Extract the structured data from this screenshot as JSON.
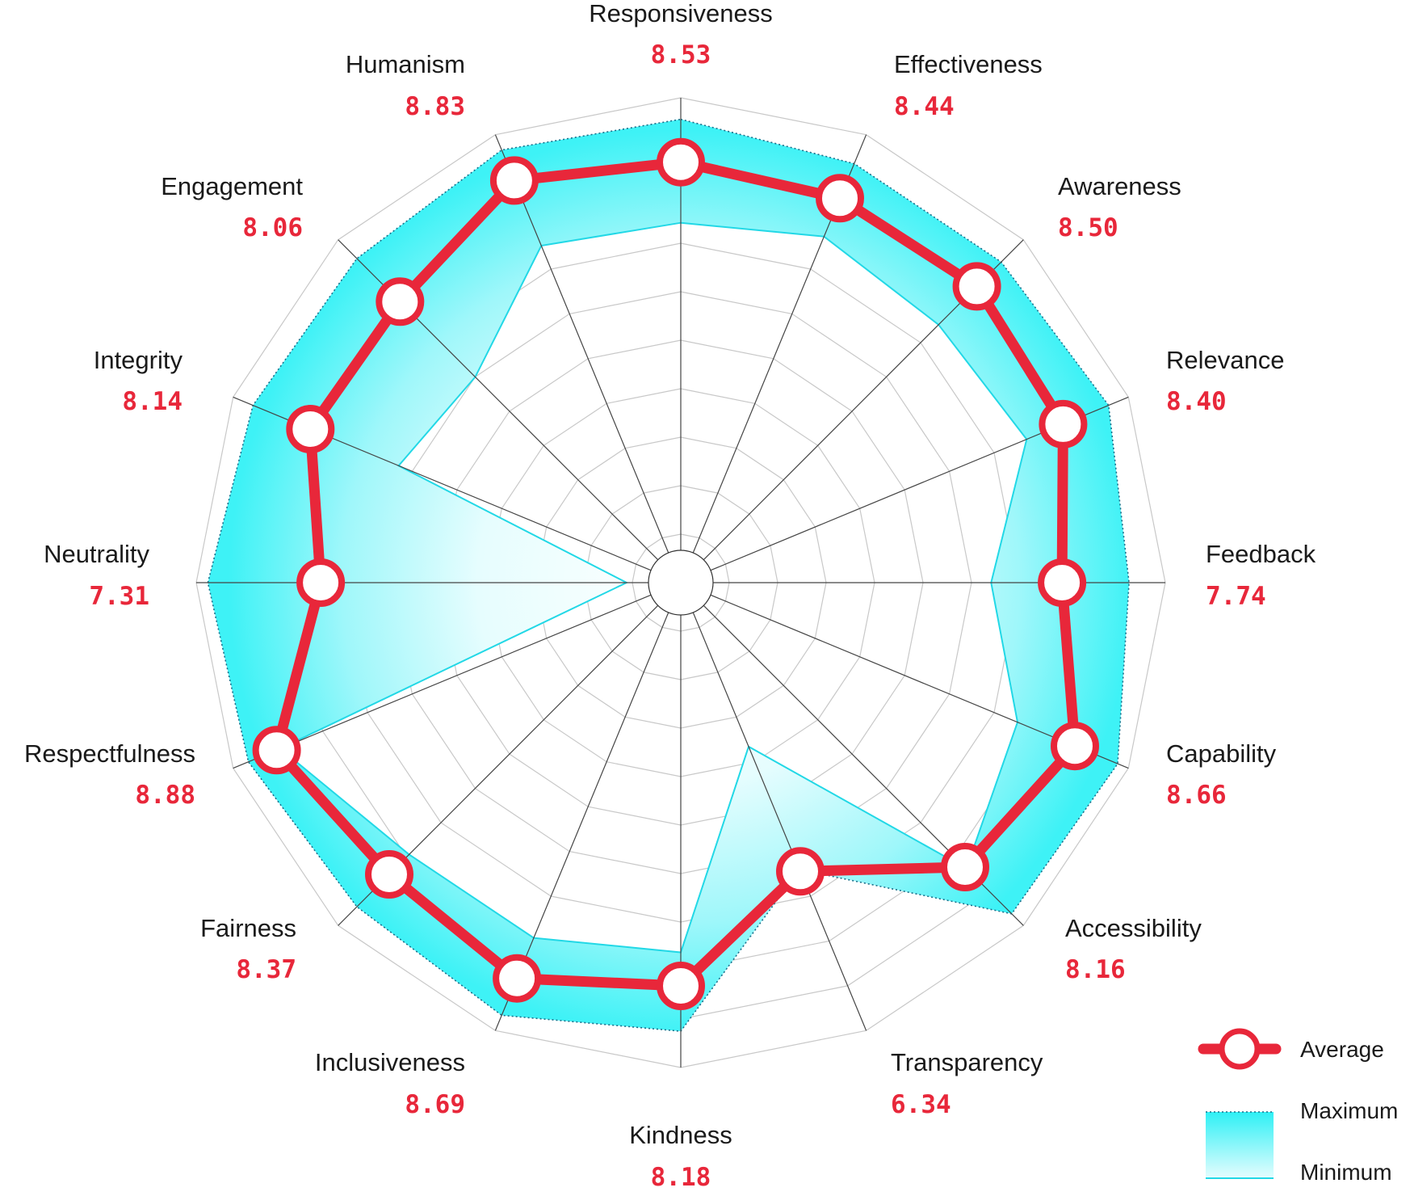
{
  "chart_data": {
    "type": "radar",
    "title": "",
    "axes": [
      "Responsiveness",
      "Effectiveness",
      "Awareness",
      "Relevance",
      "Feedback",
      "Capability",
      "Accessibility",
      "Transparency",
      "Kindness",
      "Inclusiveness",
      "Fairness",
      "Respectfulness",
      "Neutrality",
      "Integrity",
      "Engagement",
      "Humanism"
    ],
    "value_labels": [
      "8.53",
      "8.44",
      "8.50",
      "8.40",
      "7.74",
      "8.66",
      "8.16",
      "6.34",
      "8.18",
      "8.69",
      "8.37",
      "8.88",
      "7.31",
      "8.14",
      "8.06",
      "8.83"
    ],
    "rlim": [
      0,
      10
    ],
    "grid_rings": 10,
    "series": [
      {
        "name": "Average",
        "values": [
          8.53,
          8.44,
          8.5,
          8.4,
          7.74,
          8.66,
          8.16,
          6.34,
          8.18,
          8.69,
          8.37,
          8.88,
          7.31,
          8.14,
          8.06,
          8.83
        ]
      },
      {
        "name": "Maximum",
        "values": [
          9.4,
          9.2,
          9.2,
          9.4,
          9.1,
          9.6,
          9.5,
          6.3,
          9.1,
          9.5,
          9.3,
          9.5,
          9.6,
          9.4,
          9.3,
          9.5
        ]
      },
      {
        "name": "Minimum",
        "values": [
          7.3,
          7.6,
          7.4,
          7.6,
          6.3,
          7.4,
          8.2,
          3.6,
          7.5,
          7.8,
          7.8,
          8.8,
          1.1,
          6.2,
          5.9,
          7.4
        ]
      }
    ],
    "legend": {
      "placement": "bottom-right",
      "entries": [
        "Average",
        "Maximum",
        "Minimum"
      ]
    },
    "colors": {
      "average": "#e8273a",
      "band": "#2ef0f5",
      "min_line": "#22d8e6",
      "grid": "#c8c8c8",
      "spoke": "#444444"
    }
  }
}
